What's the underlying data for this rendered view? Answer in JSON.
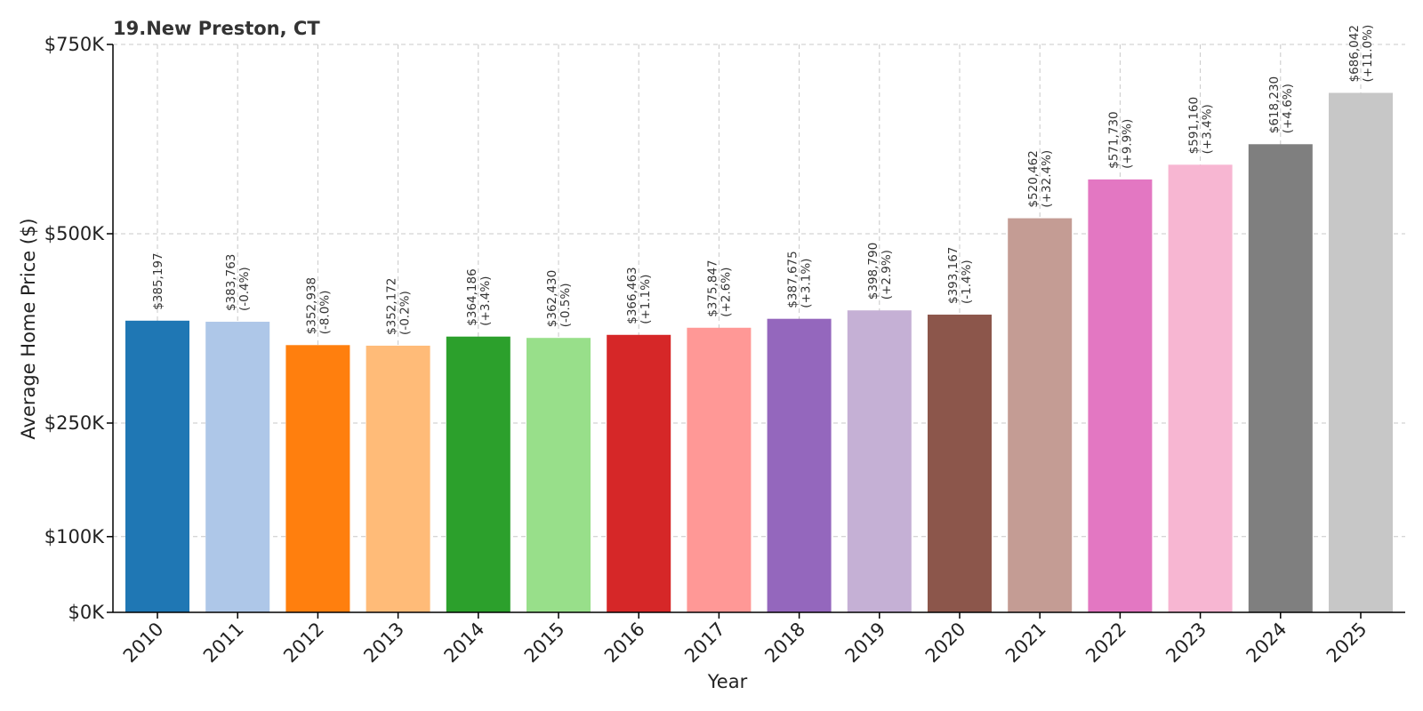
{
  "chart_data": {
    "type": "bar",
    "title": "19.New Preston, CT",
    "xlabel": "Year",
    "ylabel": "Average Home Price ($)",
    "ylim": [
      0,
      750000
    ],
    "grid": true,
    "yticks": [
      {
        "value": 0,
        "label": "$0K"
      },
      {
        "value": 100000,
        "label": "$100K"
      },
      {
        "value": 250000,
        "label": "$250K"
      },
      {
        "value": 500000,
        "label": "$500K"
      },
      {
        "value": 750000,
        "label": "$750K"
      }
    ],
    "categories": [
      "2010",
      "2011",
      "2012",
      "2013",
      "2014",
      "2015",
      "2016",
      "2017",
      "2018",
      "2019",
      "2020",
      "2021",
      "2022",
      "2023",
      "2024",
      "2025"
    ],
    "values": [
      385197,
      383763,
      352938,
      352172,
      364186,
      362430,
      366463,
      375847,
      387675,
      398790,
      393167,
      520462,
      571730,
      591160,
      618230,
      686042
    ],
    "value_labels": [
      "$385,197",
      "$383,763",
      "$352,938",
      "$352,172",
      "$364,186",
      "$362,430",
      "$366,463",
      "$375,847",
      "$387,675",
      "$398,790",
      "$393,167",
      "$520,462",
      "$571,730",
      "$591,160",
      "$618,230",
      "$686,042"
    ],
    "change_labels": [
      "",
      "(-0.4%)",
      "(-8.0%)",
      "(-0.2%)",
      "(+3.4%)",
      "(-0.5%)",
      "(+1.1%)",
      "(+2.6%)",
      "(+3.1%)",
      "(+2.9%)",
      "(-1.4%)",
      "(+32.4%)",
      "(+9.9%)",
      "(+3.4%)",
      "(+4.6%)",
      "(+11.0%)"
    ],
    "colors": [
      "#1f77b4",
      "#aec7e8",
      "#ff7f0e",
      "#ffbb78",
      "#2ca02c",
      "#98df8a",
      "#d62728",
      "#ff9896",
      "#9467bd",
      "#c5b0d5",
      "#8c564b",
      "#c49c94",
      "#e377c2",
      "#f7b6d2",
      "#7f7f7f",
      "#c7c7c7"
    ]
  }
}
